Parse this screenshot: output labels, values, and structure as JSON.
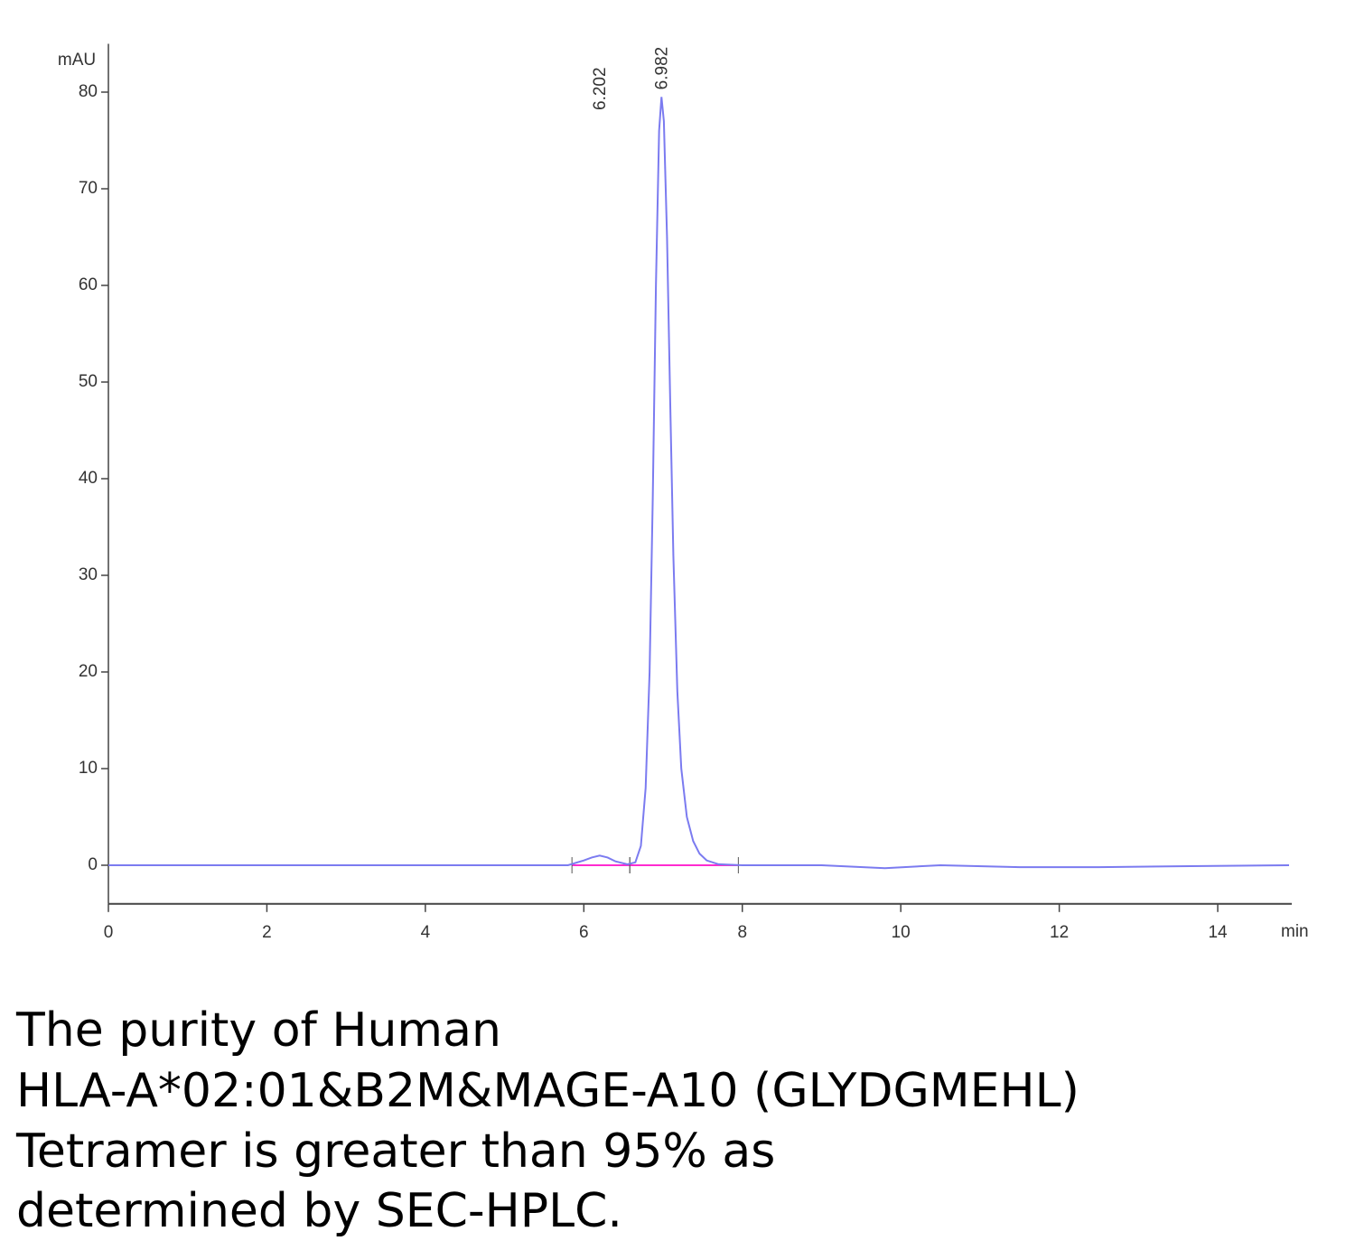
{
  "chart_data": {
    "type": "line",
    "y_label": "mAU",
    "x_label": "min",
    "xlim": [
      0,
      14.9
    ],
    "ylim": [
      -4,
      85
    ],
    "xticks": [
      0,
      2,
      4,
      6,
      8,
      10,
      12,
      14
    ],
    "yticks": [
      0,
      10,
      20,
      30,
      40,
      50,
      60,
      70,
      80
    ],
    "series": [
      {
        "color": "#7b7bf0",
        "x": [
          0,
          1,
          2,
          3,
          4,
          5,
          5.8,
          6.0,
          6.1,
          6.2,
          6.3,
          6.4,
          6.55,
          6.65,
          6.72,
          6.78,
          6.83,
          6.87,
          6.91,
          6.95,
          6.98,
          7.01,
          7.05,
          7.09,
          7.13,
          7.18,
          7.23,
          7.3,
          7.38,
          7.46,
          7.55,
          7.7,
          8,
          9,
          9.8,
          10.5,
          11.5,
          12.5,
          13.5,
          14.9
        ],
        "values": [
          0,
          0,
          0,
          0,
          0,
          0,
          0,
          0.5,
          0.8,
          1.0,
          0.8,
          0.4,
          0.1,
          0.3,
          2,
          8,
          20,
          38,
          60,
          76,
          79.5,
          77,
          65,
          48,
          32,
          18,
          10,
          5,
          2.5,
          1.2,
          0.5,
          0.1,
          0,
          0,
          -0.3,
          0,
          -0.2,
          -0.2,
          -0.1,
          0
        ]
      }
    ],
    "baseline_color": "#ff2bd0",
    "baselines": [
      [
        5.85,
        6.58
      ],
      [
        6.58,
        7.95
      ]
    ],
    "peaks": [
      {
        "time": 6.202,
        "height": 1.0
      },
      {
        "time": 6.982,
        "height": 79.5
      }
    ]
  },
  "caption": [
    "The purity of Human",
    "HLA-A*02:01&B2M&MAGE-A10 (GLYDGMEHL)",
    "Tetramer is greater than 95% as",
    "determined by SEC-HPLC."
  ]
}
